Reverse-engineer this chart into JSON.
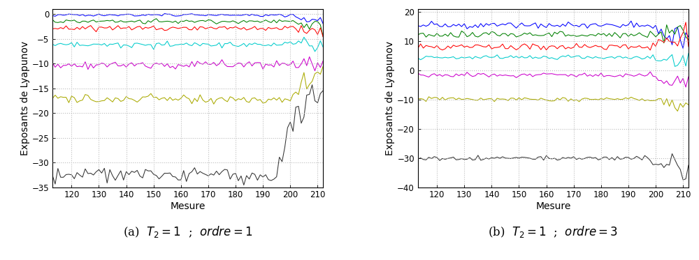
{
  "x_start": 113,
  "x_end": 212,
  "xlim": [
    113,
    212
  ],
  "xticks": [
    120,
    130,
    140,
    150,
    160,
    170,
    180,
    190,
    200,
    210
  ],
  "xlabel": "Mesure",
  "ylabel": "Exposants de Lyapunov",
  "subplot_a": {
    "ylim": [
      -35,
      1
    ],
    "yticks": [
      0,
      -5,
      -10,
      -15,
      -20,
      -25,
      -30,
      -35
    ],
    "lines": [
      {
        "base": -0.2,
        "noise": 0.12,
        "color": "#0000ff",
        "transition_x": 200,
        "transition_target": -1.5,
        "post_slope": 0.5
      },
      {
        "base": -1.5,
        "noise": 0.2,
        "color": "#008000",
        "transition_x": 200,
        "transition_target": -2.2,
        "post_slope": 0.4
      },
      {
        "base": -2.8,
        "noise": 0.25,
        "color": "#ff0000",
        "transition_x": 200,
        "transition_target": -4.0,
        "post_slope": 0.5
      },
      {
        "base": -6.2,
        "noise": 0.3,
        "color": "#00cccc",
        "transition_x": 200,
        "transition_target": -5.5,
        "post_slope": 0.4
      },
      {
        "base": -10.3,
        "noise": 0.35,
        "color": "#cc00cc",
        "transition_x": 200,
        "transition_target": -9.5,
        "post_slope": 0.4
      },
      {
        "base": -17.2,
        "noise": 0.5,
        "color": "#aaaa00",
        "transition_x": 200,
        "transition_target": -12.0,
        "post_slope": 1.0
      },
      {
        "base": -32.5,
        "noise": 0.7,
        "color": "#333333",
        "transition_x": 195,
        "transition_target": -15.0,
        "post_slope": 1.5
      }
    ],
    "caption_a": "(a)",
    "caption_b": "$T_2 = 1$",
    "caption_c": ";",
    "caption_d": "$\\mathit{ordre} = 1$"
  },
  "subplot_b": {
    "ylim": [
      -40,
      21
    ],
    "yticks": [
      20,
      10,
      0,
      -10,
      -20,
      -30,
      -40
    ],
    "lines": [
      {
        "base": 15.5,
        "noise": 0.55,
        "color": "#0000ff",
        "transition_x": 197,
        "transition_target": 10.0,
        "post_slope": 1.0
      },
      {
        "base": 12.2,
        "noise": 0.5,
        "color": "#008000",
        "transition_x": 197,
        "transition_target": 13.0,
        "post_slope": 0.5
      },
      {
        "base": 8.0,
        "noise": 0.5,
        "color": "#ff0000",
        "transition_x": 197,
        "transition_target": 11.0,
        "post_slope": 0.8
      },
      {
        "base": 4.5,
        "noise": 0.4,
        "color": "#00cccc",
        "transition_x": 197,
        "transition_target": 3.5,
        "post_slope": 0.6
      },
      {
        "base": -1.5,
        "noise": 0.4,
        "color": "#cc00cc",
        "transition_x": 197,
        "transition_target": -5.0,
        "post_slope": 0.8
      },
      {
        "base": -9.8,
        "noise": 0.35,
        "color": "#aaaa00",
        "transition_x": 197,
        "transition_target": -11.5,
        "post_slope": 0.5
      },
      {
        "base": -30.0,
        "noise": 0.4,
        "color": "#333333",
        "transition_x": 197,
        "transition_target": -33.0,
        "post_slope": 0.3
      }
    ],
    "caption_a": "(b)",
    "caption_b": "$T_2 = 1$",
    "caption_c": ";",
    "caption_d": "$\\mathit{ordre} = 3$"
  },
  "grid_color": "#bbbbbb",
  "grid_linestyle": ":",
  "grid_linewidth": 0.8,
  "line_width": 0.75,
  "caption_fontsize": 12,
  "axis_label_fontsize": 10,
  "tick_fontsize": 8.5,
  "background_color": "#ffffff"
}
